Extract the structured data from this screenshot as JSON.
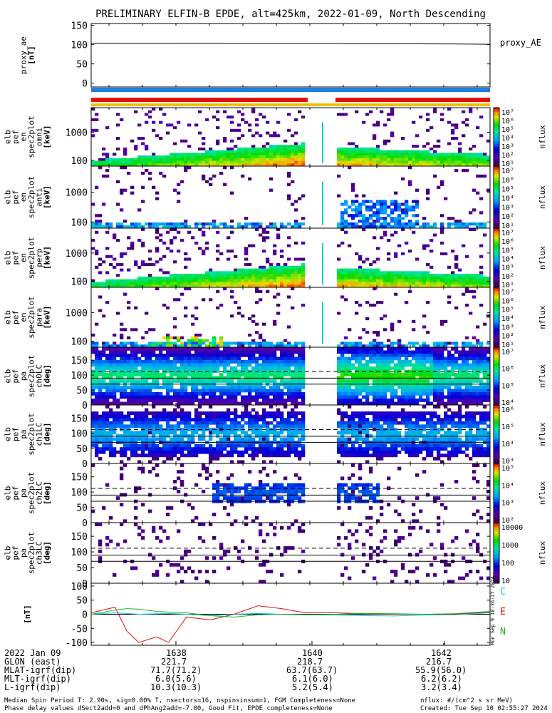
{
  "title": "PRELIMINARY ELFIN-B EPDE, alt=425km, 2022-01-09, North Descending",
  "colors": {
    "status_blue": "#1e7fe0",
    "status_red": "#e01010",
    "status_yellow": "#f0c000",
    "comp_C": "#00c8e6",
    "comp_E": "#e01010",
    "comp_N": "#20b020"
  },
  "panels": {
    "proxy_ae": {
      "ylabel": [
        "proxy_ae",
        "[nT]"
      ],
      "yticks": [
        "150",
        "100",
        "50",
        "0"
      ],
      "legend": "proxy_AE"
    },
    "en1": {
      "ylabel": [
        "elb",
        "pef",
        "en",
        "spec2plot",
        "omni",
        "[keV]"
      ],
      "yticks": [
        "1000",
        "100"
      ],
      "cb_label": "nflux"
    },
    "en2": {
      "ylabel": [
        "elb",
        "pef",
        "en",
        "spec2plot",
        "anti",
        "[keV]"
      ],
      "yticks": [
        "1000",
        "100"
      ],
      "cb_label": "nflux"
    },
    "en3": {
      "ylabel": [
        "elb",
        "pef",
        "en",
        "spec2plot",
        "perp",
        "[keV]"
      ],
      "yticks": [
        "1000",
        "100"
      ],
      "cb_label": "nflux"
    },
    "en4": {
      "ylabel": [
        "elb",
        "pef",
        "en",
        "spec2plot",
        "para",
        "[keV]"
      ],
      "yticks": [
        "1000",
        "100"
      ],
      "cb_label": "nflux"
    },
    "pa0": {
      "ylabel": [
        "elb",
        "pef",
        "pa",
        "spec2plot",
        "ch0LC",
        "[deg]"
      ],
      "yticks": [
        "150",
        "100",
        "50",
        "0"
      ],
      "cb_label": "nflux"
    },
    "pa1": {
      "ylabel": [
        "elb",
        "pef",
        "pa",
        "spec2plot",
        "ch1LC",
        "[deg]"
      ],
      "yticks": [
        "150",
        "100",
        "50",
        "0"
      ],
      "cb_label": "nflux"
    },
    "pa2": {
      "ylabel": [
        "elb",
        "pef",
        "pa",
        "spec2plot",
        "ch2LC",
        "[deg]"
      ],
      "yticks": [
        "150",
        "100",
        "50",
        "0"
      ],
      "cb_label": "nflux"
    },
    "pa3": {
      "ylabel": [
        "elb",
        "pef",
        "pa",
        "spec2plot",
        "ch3LC",
        "[deg]"
      ],
      "yticks": [
        "150",
        "100",
        "50",
        "0"
      ],
      "cb_label": "nflux"
    },
    "mag": {
      "ylabel": [
        "[nT]"
      ],
      "yticks": [
        "100",
        "50",
        "0",
        "-50",
        "-100"
      ],
      "legend": [
        "C",
        "E",
        "N"
      ]
    }
  },
  "colorbars": {
    "en": [
      "10⁷",
      "10⁶",
      "10⁵",
      "10⁴",
      "10³",
      "10²",
      "10¹"
    ],
    "pa0": [
      "10⁷",
      "10⁶",
      "10⁵",
      "10⁴"
    ],
    "pa1": [
      "10⁶",
      "10⁵",
      "10⁴",
      "10³"
    ],
    "pa2": [
      "10⁵",
      "10⁴",
      "10³",
      "10²"
    ],
    "pa3": [
      "10000",
      "1000",
      "100",
      "10"
    ]
  },
  "created_vertical": "Mon Sep 9 10:36:27 2024",
  "footer": {
    "rows": [
      {
        "label": "2022 Jan 09",
        "values": [
          "1638",
          "1640",
          "1642"
        ]
      },
      {
        "label": "GLON (east)",
        "values": [
          "221.7",
          "218.7",
          "216.7"
        ]
      },
      {
        "label": "MLAT-igrf(dip)",
        "values": [
          "71.7(71.2)",
          "63.7(63.7)",
          "55.9(56.0)"
        ]
      },
      {
        "label": "MLT-igrf(dip)",
        "values": [
          "6.0(5.6)",
          "6.1(6.0)",
          "6.2(6.2)"
        ]
      },
      {
        "label": "L-igrf(dip)",
        "values": [
          "10.3(10.3)",
          "5.2(5.4)",
          "3.2(3.4)"
        ]
      }
    ],
    "note1": "Median Spin Period T: 2.90s, sig=0.00% T, nsectors=16, nspinsinsum=1, FGM Completeness=None",
    "note2": "Phase delay values dSect2add=0 and dPhAng2add=-7.00, Good Fit, EPDE completeness=None",
    "units": "nflux: #/(cm^2 s sr MeV)",
    "created": "Created: Tue Sep 10 02:55:27 2024"
  },
  "chart_data": [
    {
      "type": "line",
      "panel": "proxy_ae",
      "x_minutes": [
        1636.4,
        1643.1
      ],
      "series": [
        {
          "name": "proxy_AE",
          "x": [
            1636.4,
            1640.0,
            1642.4,
            1643.1
          ],
          "values": [
            104,
            103,
            102,
            101
          ]
        }
      ],
      "ylim": [
        -10,
        155
      ]
    },
    {
      "type": "heatmap",
      "panel": "energy spectrograms",
      "xlim_minutes": [
        1636.4,
        1643.1
      ],
      "ylim_keV": [
        60,
        5000
      ],
      "data_gap_minutes": [
        1639.75,
        1640.35
      ],
      "colorbar": "nflux"
    },
    {
      "type": "heatmap",
      "panel": "pitch-angle spectrograms",
      "xlim_minutes": [
        1636.4,
        1643.1
      ],
      "ylim_deg": [
        0,
        180
      ]
    },
    {
      "type": "line",
      "panel": "mag",
      "x": [
        1636.4,
        1636.8,
        1637.0,
        1637.2,
        1637.5,
        1637.7,
        1638.0,
        1638.4,
        1638.8,
        1639.2,
        1639.6,
        1640.0,
        1640.5,
        1641.0,
        1641.5,
        1642.0,
        1642.5,
        1643.1
      ],
      "series": [
        {
          "name": "C",
          "values": [
            0,
            5,
            3,
            0,
            2,
            3,
            0,
            -5,
            0,
            3,
            0,
            -2,
            -3,
            -5,
            -6,
            -3,
            -2,
            5
          ]
        },
        {
          "name": "E",
          "values": [
            5,
            25,
            -60,
            -100,
            -80,
            -100,
            -10,
            -20,
            0,
            30,
            20,
            5,
            5,
            2,
            0,
            0,
            0,
            8
          ]
        },
        {
          "name": "N",
          "values": [
            0,
            15,
            20,
            18,
            10,
            8,
            5,
            -5,
            -10,
            -2,
            0,
            -2,
            0,
            3,
            2,
            0,
            2,
            10
          ]
        }
      ],
      "ylim": [
        -110,
        110
      ]
    }
  ]
}
